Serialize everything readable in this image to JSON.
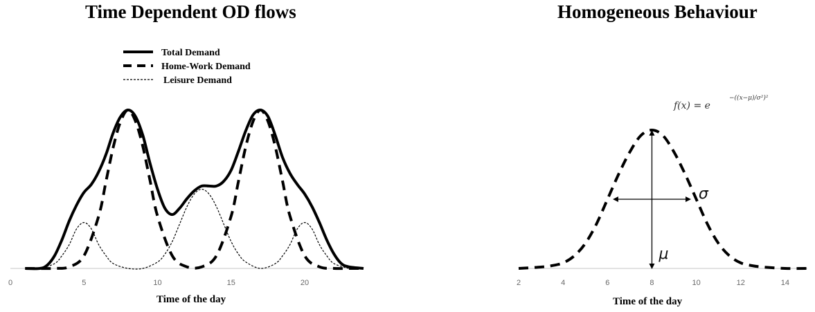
{
  "chart_data": [
    {
      "type": "line",
      "title": "Time Dependent OD flows",
      "xlabel": "Time of the day",
      "ylabel": "",
      "xlim": [
        0,
        24
      ],
      "xticks": [
        0,
        5,
        10,
        15,
        20
      ],
      "ylim": [
        0,
        1.05
      ],
      "legend_position": "top-center",
      "series": [
        {
          "name": "Total Demand",
          "style": "solid",
          "x": [
            1,
            2,
            2.5,
            3,
            3.5,
            4,
            4.5,
            5,
            5.5,
            6,
            6.5,
            7,
            7.5,
            8,
            8.5,
            9,
            9.5,
            10,
            10.5,
            11,
            11.5,
            12,
            12.5,
            13,
            13.5,
            14,
            14.5,
            15,
            15.5,
            16,
            16.5,
            17,
            17.5,
            18,
            18.5,
            19,
            19.5,
            20,
            20.5,
            21,
            21.5,
            22,
            22.5,
            23,
            24
          ],
          "values": [
            0.0,
            0.0,
            0.02,
            0.08,
            0.18,
            0.3,
            0.4,
            0.48,
            0.53,
            0.61,
            0.72,
            0.86,
            0.96,
            1.0,
            0.96,
            0.84,
            0.66,
            0.5,
            0.38,
            0.34,
            0.38,
            0.44,
            0.49,
            0.52,
            0.52,
            0.52,
            0.55,
            0.62,
            0.74,
            0.87,
            0.97,
            1.0,
            0.96,
            0.84,
            0.7,
            0.6,
            0.53,
            0.47,
            0.39,
            0.29,
            0.18,
            0.09,
            0.03,
            0.01,
            0.0
          ]
        },
        {
          "name": "Home-Work Demand",
          "style": "dashed",
          "x": [
            1,
            3,
            4,
            5,
            6,
            6.5,
            7,
            7.5,
            8,
            8.5,
            9,
            9.5,
            10,
            11,
            12,
            13,
            14,
            15,
            15.5,
            16,
            16.5,
            17,
            17.5,
            18,
            18.5,
            19,
            20,
            21,
            22,
            23,
            24
          ],
          "values": [
            0.0,
            0.0,
            0.01,
            0.08,
            0.33,
            0.55,
            0.77,
            0.93,
            1.0,
            0.93,
            0.77,
            0.55,
            0.33,
            0.08,
            0.01,
            0.01,
            0.08,
            0.33,
            0.55,
            0.77,
            0.93,
            1.0,
            0.93,
            0.77,
            0.55,
            0.33,
            0.08,
            0.01,
            0.0,
            0.0,
            0.0
          ]
        },
        {
          "name": "Leisure Demand",
          "style": "dotted",
          "x": [
            2,
            3,
            3.5,
            4,
            4.5,
            5,
            5.5,
            6,
            6.5,
            7,
            8,
            9,
            10,
            10.5,
            11,
            11.5,
            12,
            12.5,
            13,
            13.5,
            14,
            14.5,
            15,
            15.5,
            16,
            17,
            18,
            18.5,
            19,
            19.5,
            20,
            20.5,
            21,
            21.5,
            22,
            23
          ],
          "values": [
            0.0,
            0.03,
            0.08,
            0.15,
            0.25,
            0.29,
            0.25,
            0.15,
            0.08,
            0.03,
            0.0,
            0.0,
            0.04,
            0.09,
            0.17,
            0.28,
            0.39,
            0.47,
            0.5,
            0.47,
            0.39,
            0.28,
            0.17,
            0.09,
            0.04,
            0.0,
            0.03,
            0.08,
            0.15,
            0.25,
            0.29,
            0.25,
            0.15,
            0.08,
            0.03,
            0.0
          ]
        }
      ]
    },
    {
      "type": "line",
      "title": "Homogeneous Behaviour",
      "xlabel": "Time of the day",
      "ylabel": "",
      "xlim": [
        2,
        15
      ],
      "xticks": [
        2,
        4,
        6,
        8,
        10,
        12,
        14
      ],
      "ylim": [
        0,
        1.05
      ],
      "formula": {
        "lhs": "f(x) = e",
        "exponent": "−((x−μ)/σ²)²"
      },
      "annotations": {
        "sigma": "σ",
        "mu": "μ"
      },
      "series": [
        {
          "name": "",
          "style": "dashed",
          "x": [
            2,
            3,
            3.5,
            4,
            4.5,
            5,
            5.5,
            6,
            6.5,
            7,
            7.5,
            8,
            8.5,
            9,
            9.5,
            10,
            10.5,
            11,
            11.5,
            12,
            12.5,
            13,
            14,
            15
          ],
          "values": [
            0.0,
            0.01,
            0.02,
            0.04,
            0.09,
            0.18,
            0.32,
            0.5,
            0.68,
            0.84,
            0.96,
            1.0,
            0.96,
            0.84,
            0.68,
            0.5,
            0.32,
            0.18,
            0.09,
            0.04,
            0.02,
            0.01,
            0.0,
            0.0
          ]
        }
      ]
    }
  ]
}
